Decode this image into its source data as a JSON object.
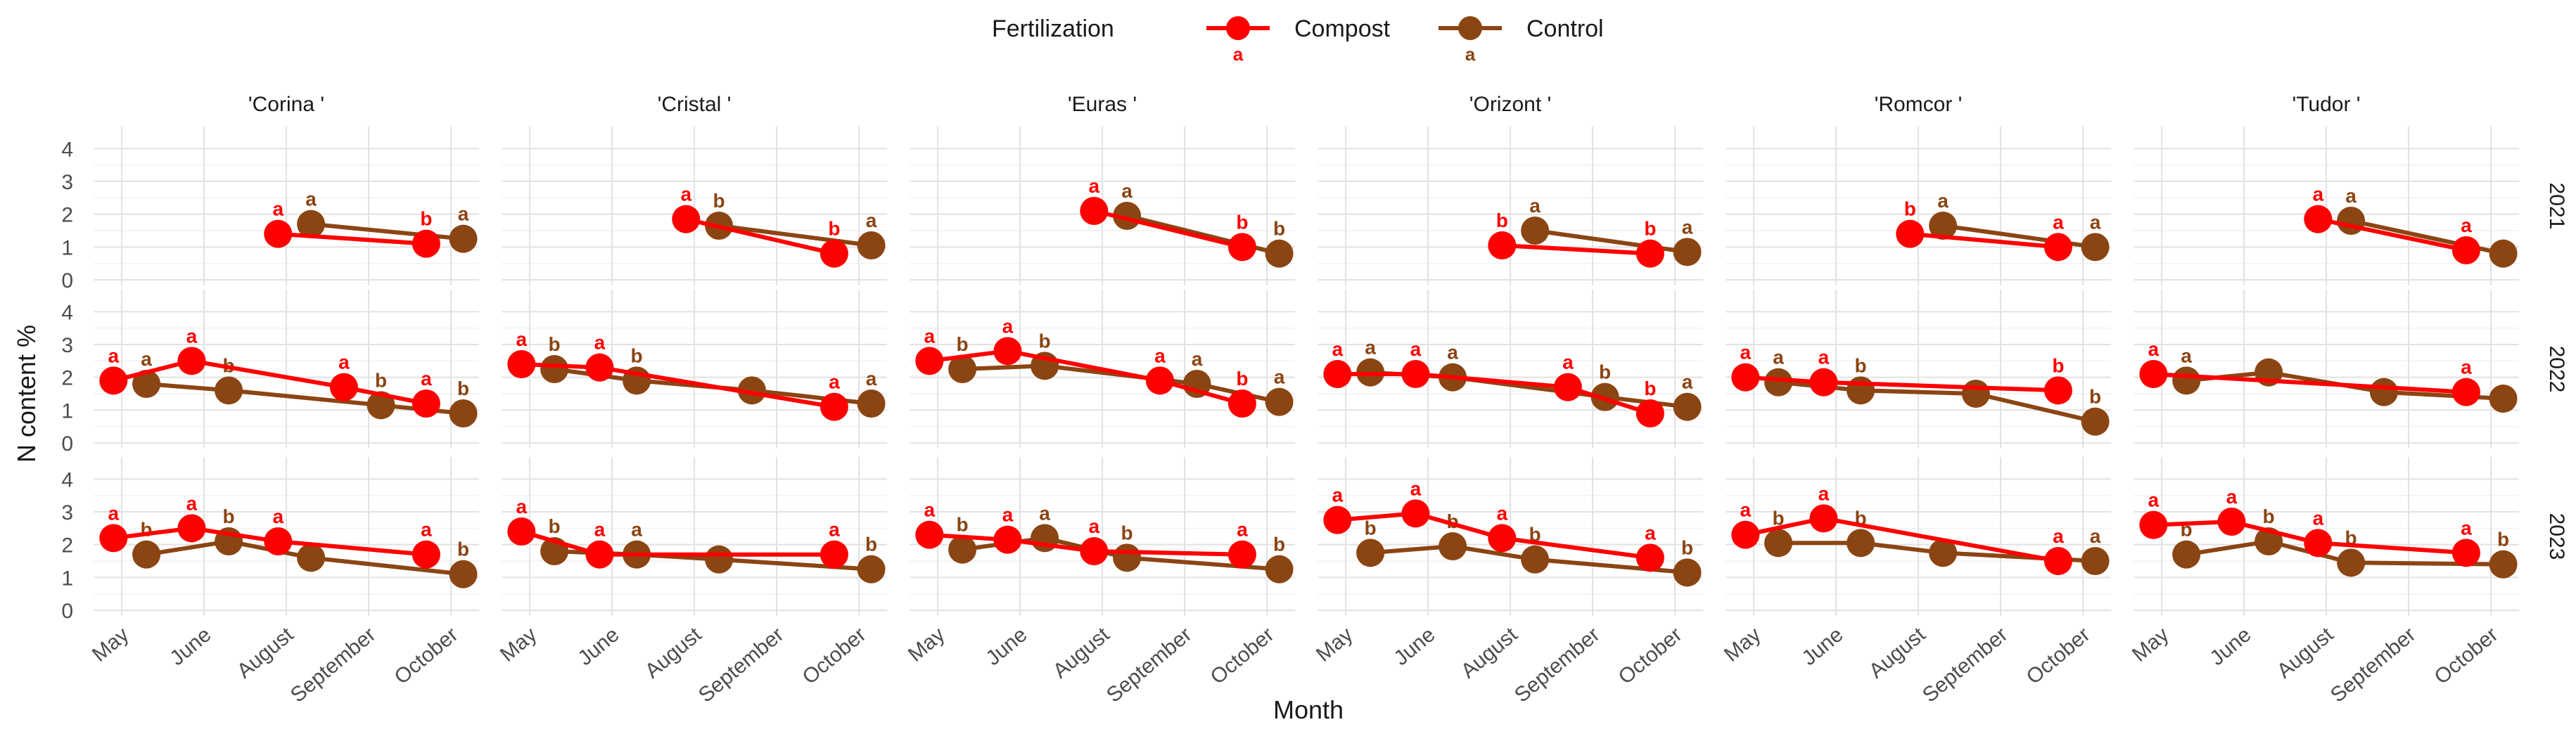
{
  "chart_data": {
    "type": "line",
    "xlabel": "Month",
    "ylabel": "N content %",
    "legend": {
      "title": "Fertilization",
      "placement": "top",
      "entries": [
        "Compost",
        "Control"
      ],
      "letters": [
        "a",
        "a"
      ]
    },
    "colors": {
      "Compost": "#ff0000",
      "Control": "#8b4513"
    },
    "months": [
      "May",
      "June",
      "August",
      "September",
      "October"
    ],
    "ylim": [
      0,
      4.5
    ],
    "yticks": [
      "0",
      "1",
      "2",
      "3",
      "4"
    ],
    "grid": true,
    "cultivars": [
      "'Corina '",
      "'Cristal '",
      "'Euras '",
      "'Orizont '",
      "'Romcor '",
      "'Tudor '"
    ],
    "years": [
      "2021",
      "2022",
      "2023"
    ],
    "panels": [
      {
        "cultivar": "'Corina '",
        "year": "2021",
        "compost": [
          [
            2.9,
            1.4,
            "a"
          ],
          [
            4.7,
            1.1,
            "b"
          ]
        ],
        "control": [
          [
            3.3,
            1.7,
            "a"
          ],
          [
            5.15,
            1.25,
            "a"
          ]
        ]
      },
      {
        "cultivar": "'Cristal '",
        "year": "2021",
        "compost": [
          [
            2.9,
            1.85,
            "a"
          ],
          [
            4.7,
            0.8,
            "b"
          ]
        ],
        "control": [
          [
            3.3,
            1.65,
            "b"
          ],
          [
            5.15,
            1.05,
            "a"
          ]
        ]
      },
      {
        "cultivar": "'Euras '",
        "year": "2021",
        "compost": [
          [
            2.9,
            2.1,
            "a"
          ],
          [
            4.7,
            1.0,
            "b"
          ]
        ],
        "control": [
          [
            3.3,
            1.95,
            "a"
          ],
          [
            5.15,
            0.8,
            "b"
          ]
        ]
      },
      {
        "cultivar": "'Orizont '",
        "year": "2021",
        "compost": [
          [
            2.9,
            1.05,
            "b"
          ],
          [
            4.7,
            0.8,
            "b"
          ]
        ],
        "control": [
          [
            3.3,
            1.5,
            "a"
          ],
          [
            5.15,
            0.85,
            "a"
          ]
        ]
      },
      {
        "cultivar": "'Romcor '",
        "year": "2021",
        "compost": [
          [
            2.9,
            1.4,
            "b"
          ],
          [
            4.7,
            1.0,
            "a"
          ]
        ],
        "control": [
          [
            3.3,
            1.65,
            "a"
          ],
          [
            5.15,
            1.0,
            "a"
          ]
        ]
      },
      {
        "cultivar": "'Tudor '",
        "year": "2021",
        "compost": [
          [
            2.9,
            1.85,
            "a"
          ],
          [
            4.7,
            0.9,
            "a"
          ]
        ],
        "control": [
          [
            3.3,
            1.8,
            "a"
          ],
          [
            5.15,
            0.8,
            ""
          ]
        ]
      },
      {
        "cultivar": "'Corina '",
        "year": "2022",
        "compost": [
          [
            0.9,
            1.9,
            "a"
          ],
          [
            1.85,
            2.5,
            "a"
          ],
          [
            3.7,
            1.7,
            "a"
          ],
          [
            4.7,
            1.2,
            "a"
          ]
        ],
        "control": [
          [
            1.3,
            1.8,
            "a"
          ],
          [
            2.3,
            1.6,
            "b"
          ],
          [
            4.15,
            1.15,
            "b"
          ],
          [
            5.15,
            0.9,
            "b"
          ]
        ]
      },
      {
        "cultivar": "'Cristal '",
        "year": "2022",
        "compost": [
          [
            0.9,
            2.4,
            "a"
          ],
          [
            1.85,
            2.3,
            "a"
          ],
          [
            4.7,
            1.1,
            "a"
          ]
        ],
        "control": [
          [
            1.3,
            2.25,
            "b"
          ],
          [
            2.3,
            1.9,
            "b"
          ],
          [
            3.7,
            1.6,
            ""
          ],
          [
            5.15,
            1.2,
            "a"
          ]
        ]
      },
      {
        "cultivar": "'Euras '",
        "year": "2022",
        "compost": [
          [
            0.9,
            2.5,
            "a"
          ],
          [
            1.85,
            2.8,
            "a"
          ],
          [
            3.7,
            1.9,
            "a"
          ],
          [
            4.7,
            1.2,
            "b"
          ]
        ],
        "control": [
          [
            1.3,
            2.25,
            "b"
          ],
          [
            2.3,
            2.35,
            "b"
          ],
          [
            4.15,
            1.8,
            "a"
          ],
          [
            5.15,
            1.25,
            "a"
          ]
        ]
      },
      {
        "cultivar": "'Orizont '",
        "year": "2022",
        "compost": [
          [
            0.9,
            2.1,
            "a"
          ],
          [
            1.85,
            2.1,
            "a"
          ],
          [
            3.7,
            1.7,
            "a"
          ],
          [
            4.7,
            0.9,
            "b"
          ]
        ],
        "control": [
          [
            1.3,
            2.15,
            "a"
          ],
          [
            2.3,
            2.0,
            "a"
          ],
          [
            4.15,
            1.4,
            "b"
          ],
          [
            5.15,
            1.1,
            "a"
          ]
        ]
      },
      {
        "cultivar": "'Romcor '",
        "year": "2022",
        "compost": [
          [
            0.9,
            2.0,
            "a"
          ],
          [
            1.85,
            1.85,
            "a"
          ],
          [
            4.7,
            1.6,
            "b"
          ]
        ],
        "control": [
          [
            1.3,
            1.85,
            "a"
          ],
          [
            2.3,
            1.6,
            "b"
          ],
          [
            3.7,
            1.5,
            ""
          ],
          [
            5.15,
            0.65,
            "b"
          ]
        ]
      },
      {
        "cultivar": "'Tudor '",
        "year": "2022",
        "compost": [
          [
            0.9,
            2.1,
            "a"
          ],
          [
            4.7,
            1.55,
            "a"
          ]
        ],
        "control": [
          [
            1.3,
            1.9,
            "a"
          ],
          [
            2.3,
            2.15,
            ""
          ],
          [
            3.7,
            1.55,
            ""
          ],
          [
            5.15,
            1.35,
            ""
          ]
        ]
      },
      {
        "cultivar": "'Corina '",
        "year": "2023",
        "compost": [
          [
            0.9,
            2.2,
            "a"
          ],
          [
            1.85,
            2.5,
            "a"
          ],
          [
            2.9,
            2.1,
            "a"
          ],
          [
            4.7,
            1.7,
            "a"
          ]
        ],
        "control": [
          [
            1.3,
            1.7,
            "b"
          ],
          [
            2.3,
            2.1,
            "b"
          ],
          [
            3.3,
            1.6,
            ""
          ],
          [
            5.15,
            1.1,
            "b"
          ]
        ]
      },
      {
        "cultivar": "'Cristal '",
        "year": "2023",
        "compost": [
          [
            0.9,
            2.4,
            "a"
          ],
          [
            1.85,
            1.7,
            "a"
          ],
          [
            4.7,
            1.7,
            "a"
          ]
        ],
        "control": [
          [
            1.3,
            1.8,
            "b"
          ],
          [
            2.3,
            1.7,
            "a"
          ],
          [
            3.3,
            1.55,
            ""
          ],
          [
            5.15,
            1.25,
            "b"
          ]
        ]
      },
      {
        "cultivar": "'Euras '",
        "year": "2023",
        "compost": [
          [
            0.9,
            2.3,
            "a"
          ],
          [
            1.85,
            2.15,
            "a"
          ],
          [
            2.9,
            1.8,
            "a"
          ],
          [
            4.7,
            1.7,
            "a"
          ]
        ],
        "control": [
          [
            1.3,
            1.85,
            "b"
          ],
          [
            2.3,
            2.2,
            "a"
          ],
          [
            3.3,
            1.6,
            "b"
          ],
          [
            5.15,
            1.25,
            "b"
          ]
        ]
      },
      {
        "cultivar": "'Orizont '",
        "year": "2023",
        "compost": [
          [
            0.9,
            2.75,
            "a"
          ],
          [
            1.85,
            2.95,
            "a"
          ],
          [
            2.9,
            2.2,
            "a"
          ],
          [
            4.7,
            1.6,
            "a"
          ]
        ],
        "control": [
          [
            1.3,
            1.75,
            "b"
          ],
          [
            2.3,
            1.95,
            "b"
          ],
          [
            3.3,
            1.55,
            "b"
          ],
          [
            5.15,
            1.15,
            "b"
          ]
        ]
      },
      {
        "cultivar": "'Romcor '",
        "year": "2023",
        "compost": [
          [
            0.9,
            2.3,
            "a"
          ],
          [
            1.85,
            2.8,
            "a"
          ],
          [
            4.7,
            1.5,
            "a"
          ]
        ],
        "control": [
          [
            1.3,
            2.05,
            "b"
          ],
          [
            2.3,
            2.05,
            "b"
          ],
          [
            3.3,
            1.75,
            ""
          ],
          [
            5.15,
            1.5,
            "a"
          ]
        ]
      },
      {
        "cultivar": "'Tudor '",
        "year": "2023",
        "compost": [
          [
            0.9,
            2.6,
            "a"
          ],
          [
            1.85,
            2.7,
            "a"
          ],
          [
            2.9,
            2.05,
            "a"
          ],
          [
            4.7,
            1.75,
            "a"
          ]
        ],
        "control": [
          [
            1.3,
            1.7,
            "b"
          ],
          [
            2.3,
            2.1,
            "b"
          ],
          [
            3.3,
            1.45,
            "b"
          ],
          [
            5.15,
            1.4,
            "b"
          ]
        ]
      }
    ]
  }
}
